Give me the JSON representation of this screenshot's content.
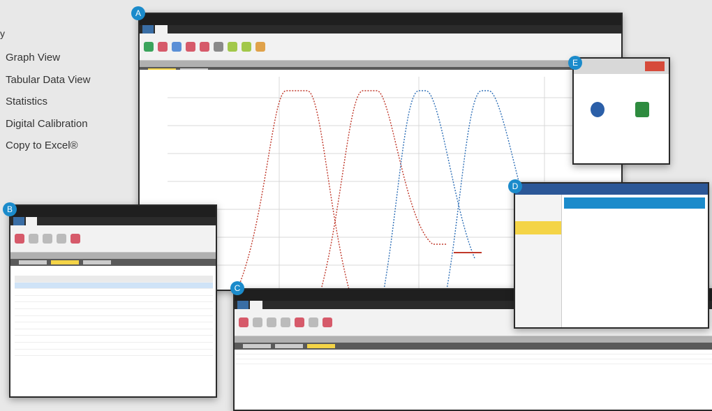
{
  "legend": {
    "heading": "y",
    "items": [
      "Graph View",
      "Tabular Data View",
      "Statistics",
      "Digital Calibration",
      "Copy to Excel®"
    ]
  },
  "badges": [
    "A",
    "B",
    "C",
    "D",
    "E"
  ],
  "colors": {
    "badge": "#1b8bcb",
    "highlight_tab": "#f4d447",
    "curve_red": "#c0392b",
    "curve_blue": "#2e6fb7"
  },
  "icons": [
    "excel-export-icon",
    "pdf-export-icon",
    "window-close-icon"
  ]
}
